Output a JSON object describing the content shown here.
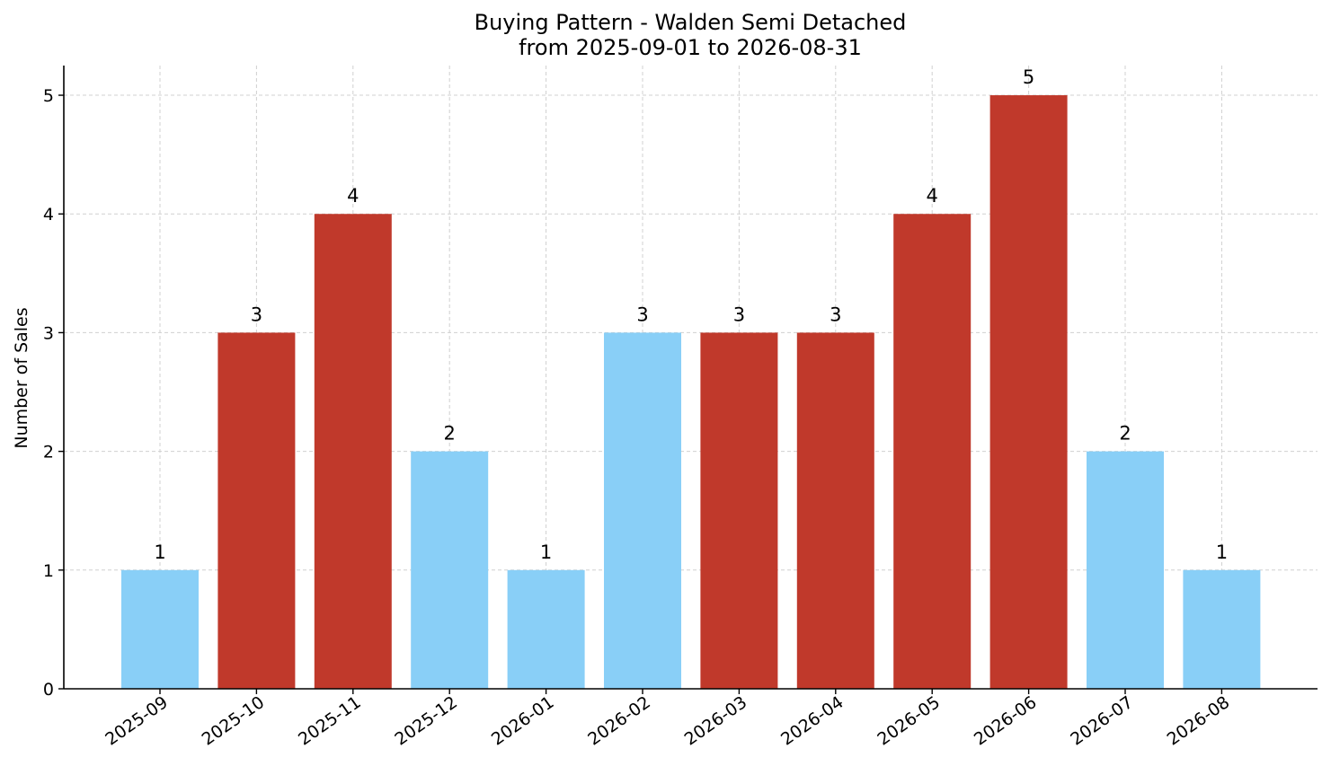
{
  "chart_data": {
    "type": "bar",
    "title": "Buying Pattern - Walden Semi Detached",
    "subtitle": "from 2025-09-01 to 2026-08-31",
    "xlabel": "",
    "ylabel": "Number of Sales",
    "categories": [
      "2025-09",
      "2025-10",
      "2025-11",
      "2025-12",
      "2026-01",
      "2026-02",
      "2026-03",
      "2026-04",
      "2026-05",
      "2026-06",
      "2026-07",
      "2026-08"
    ],
    "values": [
      1,
      3,
      4,
      2,
      1,
      3,
      3,
      3,
      4,
      5,
      2,
      1
    ],
    "bar_colors": [
      "#89CFF7",
      "#C0392B",
      "#C0392B",
      "#89CFF7",
      "#89CFF7",
      "#89CFF7",
      "#C0392B",
      "#C0392B",
      "#C0392B",
      "#C0392B",
      "#89CFF7",
      "#89CFF7"
    ],
    "ylim": [
      0,
      5.25
    ],
    "yticks": [
      0,
      1,
      2,
      3,
      4,
      5
    ],
    "grid": true,
    "data_labels": true
  }
}
